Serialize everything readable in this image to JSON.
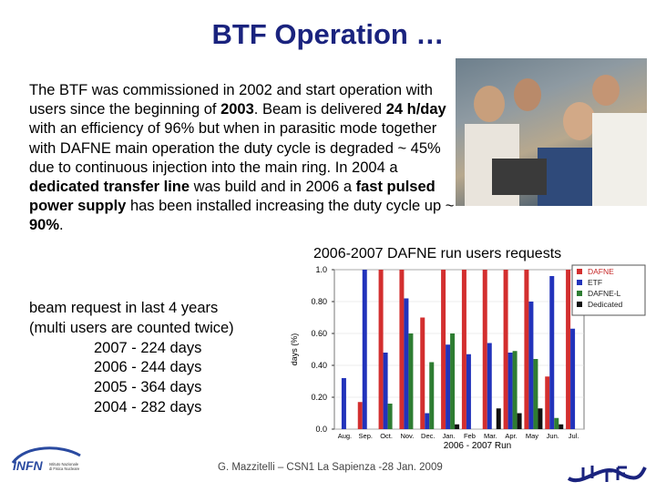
{
  "slide": {
    "title": "BTF Operation …",
    "paragraph": [
      {
        "t": "The BTF was commissioned in 2002 and start operation with users since the beginning of "
      },
      {
        "t": "2003",
        "b": true
      },
      {
        "t": ". Beam is delivered "
      },
      {
        "t": "24 h/day",
        "b": true
      },
      {
        "t": " with an efficiency of 96% but when in parasitic mode together with DAFNE main operation the duty cycle is degraded ~ 45% due to continuous injection into the main ring. In 2004 a "
      },
      {
        "t": "dedicated transfer line",
        "b": true
      },
      {
        "t": " was build and in 2006 a "
      },
      {
        "t": "fast pulsed power supply",
        "b": true
      },
      {
        "t": " has been installed increasing the duty cycle up ~ "
      },
      {
        "t": "90%",
        "b": true
      },
      {
        "t": "."
      }
    ],
    "chart_caption": "2006-2007 DAFNE run users requests",
    "summary_intro_1": "beam request in last 4 years",
    "summary_intro_2": "(multi users are counted twice)",
    "summary_lines": [
      "2007 - 224 days",
      "2006 - 244 days",
      "2005 - 364 days",
      "2004 - 282 days"
    ],
    "footer": "G. Mazzitelli – CSN1 La Sapienza -28 Jan. 2009",
    "logo_text": "INFN",
    "logo_subtext": "Istituto Nazionale di Fisica Nucleare"
  },
  "chart_data": {
    "type": "bar",
    "xlabel": "2006 - 2007 Run",
    "ylabel": "days (%)",
    "ylim": [
      0,
      1.0
    ],
    "yticks": [
      "0.0",
      "0.20",
      "0.40",
      "0.60",
      "0.80",
      "1.0"
    ],
    "legend_position": "top-right",
    "categories": [
      "Aug.",
      "Sep.",
      "Oct.",
      "Nov.",
      "Dec.",
      "Jan.",
      "Feb",
      "Mar.",
      "Apr.",
      "May",
      "Jun.",
      "Jul."
    ],
    "series": [
      {
        "name": "DAFNE",
        "color": "#d32f2f",
        "values": [
          0,
          0.17,
          1.0,
          1.0,
          0.7,
          1.0,
          1.0,
          1.0,
          1.0,
          1.0,
          0.33,
          1.0
        ]
      },
      {
        "name": "ETF",
        "color": "#2233bb",
        "values": [
          0.32,
          1.0,
          0.48,
          0.82,
          0.1,
          0.53,
          0.47,
          0.54,
          0.48,
          0.8,
          0.96,
          0.63
        ]
      },
      {
        "name": "DAFNE-L",
        "color": "#2e7d32",
        "values": [
          0,
          0,
          0.16,
          0.6,
          0.42,
          0.6,
          0,
          0,
          0.49,
          0.44,
          0.07,
          0
        ]
      },
      {
        "name": "Dedicated",
        "color": "#111111",
        "values": [
          0,
          0,
          0,
          0,
          0,
          0.03,
          0,
          0.13,
          0.1,
          0.13,
          0.03,
          0
        ]
      }
    ],
    "legend_labels": [
      "DAFNE",
      "ETF",
      "DAFNE-L",
      "Dedicated"
    ]
  }
}
